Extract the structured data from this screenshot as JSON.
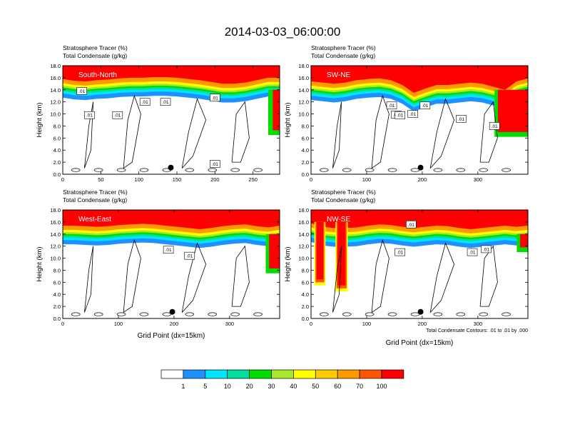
{
  "title": "2014-03-03_06:00:00",
  "colors": {
    "levels": [
      "#ffffff",
      "#1e90ff",
      "#00e5ff",
      "#00e09a",
      "#00dd00",
      "#a8e82a",
      "#ffff00",
      "#ffcc00",
      "#ff9900",
      "#ff5500",
      "#ff0000"
    ],
    "contour": "#000000"
  },
  "chart_data": [
    {
      "type": "heatmap",
      "label": "South-North",
      "title_line1": "Stratosphere Tracer   (%)",
      "title_line2": "Total Condensate   (g/kg)",
      "xlabel": "",
      "ylabel": "Height (km)",
      "xlim": [
        0,
        285
      ],
      "ylim": [
        0,
        18
      ],
      "xticks": [
        "0",
        "50",
        "100",
        "150",
        "200",
        "250"
      ],
      "xtick_values": [
        0,
        50,
        100,
        150,
        200,
        250
      ],
      "yticks": [
        "0.0",
        "2.0",
        "4.0",
        "6.0",
        "8.0",
        "10.0",
        "12.0",
        "14.0",
        "16.0",
        "18.0"
      ],
      "marker_x": 142,
      "marker_y": 1.1,
      "top_km": [
        15.8,
        15.5,
        15.4,
        15.6,
        15.7,
        15.9,
        16.0,
        16.0,
        16.1,
        16.1,
        16.0,
        15.8,
        15.6,
        15.3,
        15.0,
        15.0,
        15.2,
        15.6,
        16.0,
        16.0
      ],
      "rhs_band": {
        "x_from": 270,
        "bottom_km": 6.5
      },
      "contour_labels": [
        {
          "text": ".01",
          "x": 25,
          "y": 13.8
        },
        {
          "text": ".01",
          "x": 35,
          "y": 9.8
        },
        {
          "text": ".01",
          "x": 72,
          "y": 9.8
        },
        {
          "text": ".01",
          "x": 108,
          "y": 12.0
        },
        {
          "text": ".01",
          "x": 135,
          "y": 12.0
        },
        {
          "text": ".01",
          "x": 200,
          "y": 12.7
        },
        {
          "text": ".01",
          "x": 200,
          "y": 1.7
        }
      ],
      "note": ""
    },
    {
      "type": "heatmap",
      "label": "SW-NE",
      "title_line1": "Stratosphere Tracer   (%)",
      "title_line2": "Total Condensate   (g/kg)",
      "xlabel": "",
      "ylabel": "Height (km)",
      "xlim": [
        0,
        390
      ],
      "ylim": [
        0,
        18
      ],
      "xticks": [
        "0",
        "100",
        "200",
        "300"
      ],
      "xtick_values": [
        0,
        100,
        200,
        300
      ],
      "yticks": [
        "0.0",
        "2.0",
        "4.0",
        "6.0",
        "8.0",
        "10.0",
        "12.0",
        "14.0",
        "16.0",
        "18.0"
      ],
      "marker_x": 197,
      "marker_y": 1.1,
      "top_km": [
        15.4,
        15.2,
        15.0,
        15.2,
        15.6,
        15.8,
        15.9,
        15.6,
        14.8,
        13.5,
        14.2,
        14.8,
        14.8,
        15.0,
        15.2,
        15.0,
        14.5,
        14.0,
        15.4,
        15.9
      ],
      "rhs_band": {
        "x_from": 330,
        "bottom_km": 6.2
      },
      "contour_labels": [
        {
          "text": ".01",
          "x": 145,
          "y": 11.4
        },
        {
          "text": ".01",
          "x": 153,
          "y": 9.9
        },
        {
          "text": ".01",
          "x": 160,
          "y": 9.8
        },
        {
          "text": ".01",
          "x": 183,
          "y": 10.0
        },
        {
          "text": ".01",
          "x": 205,
          "y": 11.4
        },
        {
          "text": ".01",
          "x": 270,
          "y": 9.2
        },
        {
          "text": ".01",
          "x": 330,
          "y": 8.0
        }
      ],
      "note": ""
    },
    {
      "type": "heatmap",
      "label": "West-East",
      "title_line1": "Stratosphere Tracer   (%)",
      "title_line2": "Total Condensate   (g/kg)",
      "xlabel": "Grid Point (dx=15km)",
      "ylabel": "Height (km)",
      "xlim": [
        0,
        390
      ],
      "ylim": [
        0,
        18
      ],
      "xticks": [
        "0",
        "100",
        "200",
        "300"
      ],
      "xtick_values": [
        0,
        100,
        200,
        300
      ],
      "yticks": [
        "0.0",
        "2.0",
        "4.0",
        "6.0",
        "8.0",
        "10.0",
        "12.0",
        "14.0",
        "16.0",
        "18.0"
      ],
      "marker_x": 197,
      "marker_y": 1.1,
      "top_km": [
        15.4,
        15.4,
        15.3,
        15.2,
        15.3,
        15.5,
        15.6,
        15.7,
        15.6,
        15.4,
        15.2,
        15.0,
        14.8,
        15.0,
        15.3,
        15.5,
        15.6,
        15.3,
        15.1,
        15.4
      ],
      "rhs_band": {
        "x_from": 365,
        "bottom_km": 7.5
      },
      "contour_labels": [
        {
          "text": ".01",
          "x": 190,
          "y": 11.4
        },
        {
          "text": ".01",
          "x": 228,
          "y": 10.4
        }
      ],
      "note": ""
    },
    {
      "type": "heatmap",
      "label": "NW-SE",
      "title_line1": "Stratosphere Tracer   (%)",
      "title_line2": "Total Condensate   (g/kg)",
      "xlabel": "Grid Point (dx=15km)",
      "ylabel": "Height (km)",
      "xlim": [
        0,
        390
      ],
      "ylim": [
        0,
        18
      ],
      "xticks": [
        "0",
        "100",
        "200",
        "300"
      ],
      "xtick_values": [
        0,
        100,
        200,
        300
      ],
      "yticks": [
        "0.0",
        "2.0",
        "4.0",
        "6.0",
        "8.0",
        "10.0",
        "12.0",
        "14.0",
        "16.0",
        "18.0"
      ],
      "marker_x": 197,
      "marker_y": 1.1,
      "top_km": [
        15.8,
        15.2,
        15.0,
        15.0,
        15.1,
        15.4,
        15.6,
        15.5,
        15.2,
        15.0,
        15.2,
        15.4,
        15.3,
        15.0,
        14.8,
        15.0,
        15.2,
        15.4,
        15.2,
        15.4
      ],
      "intrusions": [
        {
          "x0": 10,
          "x1": 22,
          "bottom_km": 6.5
        },
        {
          "x0": 48,
          "x1": 62,
          "bottom_km": 5.5
        }
      ],
      "rhs_band": {
        "x_from": 370,
        "bottom_km": 11.0
      },
      "contour_labels": [
        {
          "text": ".01",
          "x": 180,
          "y": 15.6
        },
        {
          "text": ".01",
          "x": 160,
          "y": 11.0
        },
        {
          "text": ".01",
          "x": 290,
          "y": 11.0
        },
        {
          "text": ".01",
          "x": 315,
          "y": 11.5
        }
      ],
      "note": "Total Condensate Contours: .01 to .01 by .000"
    }
  ],
  "colorbar": {
    "labels": [
      "1",
      "5",
      "10",
      "20",
      "30",
      "40",
      "50",
      "60",
      "70",
      "100"
    ],
    "colors": [
      "#ffffff",
      "#1e90ff",
      "#00e5ff",
      "#00e09a",
      "#00dd00",
      "#a8e82a",
      "#ffff00",
      "#ffcc00",
      "#ff9900",
      "#ff5500",
      "#ff0000"
    ]
  }
}
